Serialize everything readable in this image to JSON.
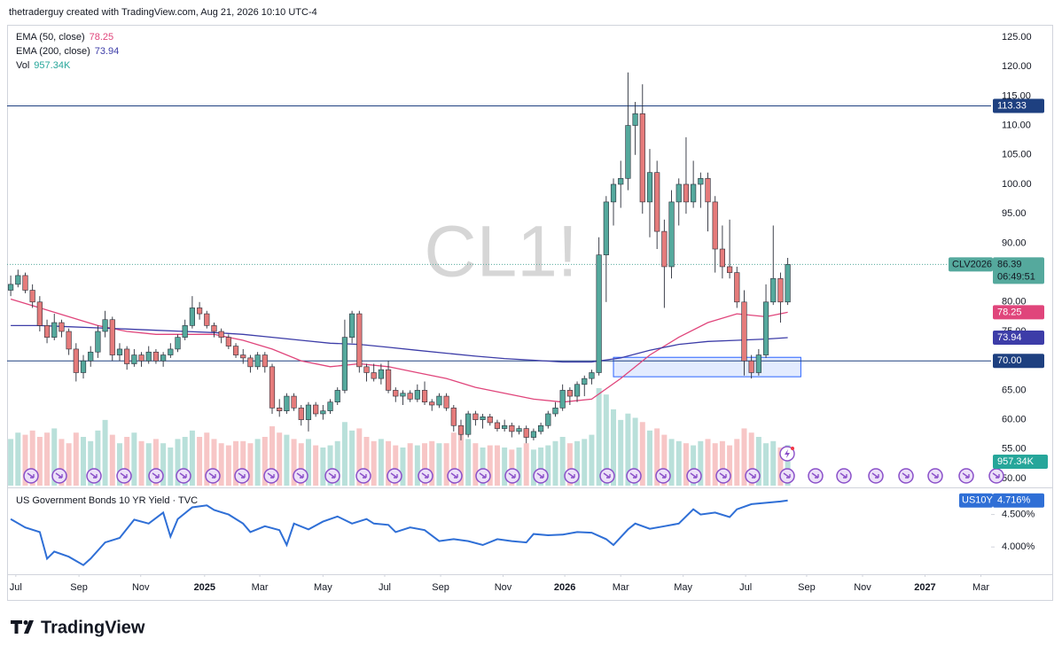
{
  "header": "thetraderguy created with TradingView.com, Aug 21, 2026 10:10 UTC-4",
  "footer": "TradingView",
  "chart_data": [
    {
      "type": "candlestick",
      "watermark": "CL1!",
      "up_color": "#55a99d",
      "down_color": "#e57b7b",
      "candles": [
        [
          82,
          84.5,
          81,
          83
        ],
        [
          83,
          85.5,
          82.5,
          84.5
        ],
        [
          84.5,
          85,
          81.5,
          82
        ],
        [
          82,
          83,
          79,
          80
        ],
        [
          80,
          81,
          75,
          76
        ],
        [
          76,
          77,
          73,
          74
        ],
        [
          74,
          78,
          73.5,
          76.5
        ],
        [
          76.5,
          77,
          74,
          75
        ],
        [
          75,
          75.5,
          71,
          72
        ],
        [
          72,
          73,
          66.5,
          68
        ],
        [
          68,
          71,
          67,
          70
        ],
        [
          70,
          72.5,
          69,
          71.5
        ],
        [
          71.5,
          76,
          70.5,
          75
        ],
        [
          75,
          78.5,
          74,
          77
        ],
        [
          77,
          77.5,
          70,
          71
        ],
        [
          71,
          73,
          70,
          72
        ],
        [
          72,
          72.5,
          68.5,
          69.5
        ],
        [
          69.5,
          72,
          69,
          71
        ],
        [
          71,
          71.5,
          69,
          70
        ],
        [
          70,
          72.5,
          69.5,
          71.5
        ],
        [
          71.5,
          72,
          69.5,
          70
        ],
        [
          70,
          71.5,
          69,
          71
        ],
        [
          71,
          73,
          70.5,
          72
        ],
        [
          72,
          74.5,
          71.5,
          74
        ],
        [
          74,
          77,
          73.5,
          76
        ],
        [
          76,
          81,
          75.5,
          79
        ],
        [
          79,
          80,
          77,
          78
        ],
        [
          78,
          78.5,
          75.5,
          76
        ],
        [
          76,
          76.5,
          74,
          75
        ],
        [
          75,
          75.5,
          73,
          74
        ],
        [
          74,
          74.5,
          72,
          72.5
        ],
        [
          72.5,
          73,
          70.5,
          71
        ],
        [
          71,
          72,
          69.5,
          70.5
        ],
        [
          70.5,
          71,
          68,
          69
        ],
        [
          69,
          71.5,
          68.5,
          71
        ],
        [
          71,
          71.5,
          68,
          69
        ],
        [
          69,
          69.5,
          61,
          62
        ],
        [
          62,
          63.5,
          60.5,
          61.5
        ],
        [
          61.5,
          64.5,
          61,
          64
        ],
        [
          64,
          64.5,
          61.5,
          62
        ],
        [
          62,
          62.5,
          59,
          60
        ],
        [
          60,
          63,
          58,
          62.5
        ],
        [
          62.5,
          63,
          60.5,
          61
        ],
        [
          61,
          62.5,
          60,
          61.5
        ],
        [
          61.5,
          63.5,
          61,
          63
        ],
        [
          63,
          65.5,
          62.5,
          65
        ],
        [
          65,
          77,
          64.5,
          74
        ],
        [
          74,
          78.5,
          73,
          78
        ],
        [
          78,
          78.5,
          68,
          69
        ],
        [
          69,
          69.5,
          66.5,
          68
        ],
        [
          68,
          69.5,
          66.5,
          67
        ],
        [
          67,
          69.5,
          66,
          68.5
        ],
        [
          68.5,
          70,
          64.5,
          65
        ],
        [
          65,
          65.5,
          63,
          64
        ],
        [
          64,
          65,
          62.5,
          64.5
        ],
        [
          64.5,
          65,
          63,
          63.5
        ],
        [
          63.5,
          66,
          63,
          65
        ],
        [
          65,
          66.5,
          62.5,
          63
        ],
        [
          63,
          63.5,
          61.5,
          62.5
        ],
        [
          62.5,
          64.5,
          62,
          64
        ],
        [
          64,
          64.5,
          61.5,
          62
        ],
        [
          62,
          62.5,
          58,
          59
        ],
        [
          59,
          60,
          56.5,
          57.5
        ],
        [
          57.5,
          61.5,
          57,
          61
        ],
        [
          61,
          61.5,
          59,
          60
        ],
        [
          60,
          61,
          58.5,
          60.5
        ],
        [
          60.5,
          61,
          59,
          59.5
        ],
        [
          59.5,
          60,
          58,
          58.5
        ],
        [
          58.5,
          60,
          58,
          59
        ],
        [
          59,
          59.5,
          57,
          58
        ],
        [
          58,
          59,
          57.5,
          58.5
        ],
        [
          58.5,
          59,
          56,
          57
        ],
        [
          57,
          58.5,
          56.5,
          58
        ],
        [
          58,
          59.5,
          57.5,
          59
        ],
        [
          59,
          61.5,
          58.5,
          61
        ],
        [
          61,
          63,
          60.5,
          62
        ],
        [
          62,
          66,
          61.5,
          65
        ],
        [
          65,
          65.5,
          62.5,
          64
        ],
        [
          64,
          66.5,
          63,
          66
        ],
        [
          66,
          67.5,
          64,
          67
        ],
        [
          67,
          68.5,
          66,
          68
        ],
        [
          68,
          91,
          67.5,
          88
        ],
        [
          88,
          98,
          80,
          97
        ],
        [
          97,
          101,
          93,
          100
        ],
        [
          100,
          104,
          96,
          101
        ],
        [
          101,
          119,
          99,
          110
        ],
        [
          110,
          114,
          105,
          112
        ],
        [
          112,
          117,
          95,
          97
        ],
        [
          97,
          106,
          91,
          102
        ],
        [
          102,
          104,
          89,
          92
        ],
        [
          92,
          94,
          79,
          86
        ],
        [
          86,
          99,
          84,
          97
        ],
        [
          97,
          101,
          93,
          100
        ],
        [
          100,
          108,
          95,
          97
        ],
        [
          97,
          104,
          96,
          100
        ],
        [
          100,
          102,
          96,
          101
        ],
        [
          101,
          102,
          92,
          97
        ],
        [
          97,
          98,
          85,
          89
        ],
        [
          89,
          93,
          84,
          86
        ],
        [
          86,
          94,
          84,
          85
        ],
        [
          85,
          86,
          79,
          80
        ],
        [
          80,
          82,
          67.5,
          70
        ],
        [
          70,
          71,
          67,
          68
        ],
        [
          68,
          72,
          67.5,
          71
        ],
        [
          71,
          83,
          70.5,
          80
        ],
        [
          80,
          93,
          79.5,
          84
        ],
        [
          84,
          85,
          76.5,
          80
        ],
        [
          80,
          87.5,
          79.5,
          86.39
        ]
      ],
      "last": {
        "symbol": "CLV2026",
        "countdown": "06:49:51"
      },
      "volume": {
        "name": "Vol",
        "color": "#26a69a",
        "up_color": "#b9e0da",
        "down_color": "#f7c6c6",
        "ylim": [
          0,
          2300
        ],
        "last_label": "957.34K",
        "values": [
          1100,
          1250,
          1200,
          1300,
          1150,
          1250,
          1350,
          1100,
          1000,
          1250,
          1150,
          1050,
          1300,
          1550,
          1200,
          1000,
          1150,
          1250,
          1050,
          1000,
          1100,
          1000,
          900,
          1100,
          1150,
          1300,
          1150,
          1250,
          1100,
          1000,
          950,
          1050,
          1050,
          1000,
          1100,
          1150,
          1400,
          1250,
          1200,
          1100,
          1000,
          1100,
          950,
          900,
          950,
          1050,
          1500,
          1300,
          1350,
          1150,
          1050,
          1100,
          1050,
          950,
          900,
          1000,
          950,
          1000,
          1050,
          1000,
          1000,
          1250,
          1200,
          1100,
          1000,
          900,
          950,
          950,
          900,
          850,
          900,
          1000,
          850,
          900,
          950,
          1050,
          1150,
          1000,
          1050,
          1100,
          1200,
          2300,
          2150,
          1800,
          1550,
          1700,
          1600,
          1500,
          1300,
          1350,
          1200,
          1100,
          1050,
          1000,
          950,
          1050,
          1100,
          1000,
          1050,
          950,
          1100,
          1350,
          1250,
          1150,
          1000,
          1050,
          900,
          957.34
        ]
      },
      "ema": [
        {
          "name": "EMA (50, close)",
          "color": "#e0457b",
          "x": [
            0,
            4,
            8,
            12,
            16,
            20,
            24,
            28,
            32,
            36,
            40,
            44,
            48,
            52,
            56,
            60,
            64,
            68,
            72,
            76,
            80,
            84,
            88,
            92,
            96,
            100,
            104,
            107
          ],
          "values": [
            80.5,
            79,
            77.5,
            76,
            75,
            74.5,
            74.5,
            74.5,
            73.5,
            72,
            70,
            69,
            69.5,
            69,
            68,
            67,
            65.5,
            64.5,
            63.5,
            63,
            63.5,
            67,
            71,
            74,
            76.5,
            78,
            77.5,
            78.25
          ]
        },
        {
          "name": "EMA (200, close)",
          "color": "#3d3da8",
          "x": [
            0,
            4,
            8,
            12,
            16,
            20,
            24,
            28,
            32,
            36,
            40,
            44,
            48,
            52,
            56,
            60,
            64,
            68,
            72,
            76,
            80,
            84,
            88,
            92,
            96,
            100,
            104,
            107
          ],
          "values": [
            76,
            76,
            75.8,
            75.6,
            75.4,
            75.2,
            75,
            74.8,
            74.5,
            74,
            73.5,
            73,
            72.8,
            72.3,
            71.8,
            71.3,
            70.8,
            70.4,
            70.1,
            69.8,
            69.8,
            70.5,
            71.8,
            72.8,
            73.3,
            73.5,
            73.7,
            73.94
          ]
        }
      ],
      "hlines": [
        {
          "value": 113.33,
          "label": "113.33"
        },
        {
          "value": 70,
          "label": "70.00"
        }
      ],
      "hline_color": "#1e4080",
      "zone": {
        "x": [
          83,
          108.8
        ],
        "y": [
          67.3,
          70.6
        ]
      },
      "zone_color": "#2962ff",
      "grid": false,
      "ylim": [
        48.8,
        127.1
      ],
      "yticks": [
        {
          "value": 50,
          "label": "50.00"
        },
        {
          "value": 55,
          "label": "55.00"
        },
        {
          "value": 60,
          "label": "60.00"
        },
        {
          "value": 65,
          "label": "65.00"
        },
        {
          "value": 70,
          "label": "70.00"
        },
        {
          "value": 75,
          "label": "75.00"
        },
        {
          "value": 80,
          "label": "80.00"
        },
        {
          "value": 85,
          "label": "85.00"
        },
        {
          "value": 90,
          "label": "90.00"
        },
        {
          "value": 95,
          "label": "95.00"
        },
        {
          "value": 100,
          "label": "100.00"
        },
        {
          "value": 105,
          "label": "105.00"
        },
        {
          "value": 110,
          "label": "110.00"
        },
        {
          "value": 115,
          "label": "115.00"
        },
        {
          "value": 120,
          "label": "120.00"
        },
        {
          "value": 125,
          "label": "125.00"
        }
      ],
      "xlim": [
        -0.5,
        135
      ],
      "xticks": [
        {
          "value": 0.7,
          "label": "Jul"
        },
        {
          "value": 9.4,
          "label": "Sep"
        },
        {
          "value": 17.9,
          "label": "Nov"
        },
        {
          "value": 26.7,
          "label": "2025"
        },
        {
          "value": 34.3,
          "label": "Mar"
        },
        {
          "value": 43,
          "label": "May"
        },
        {
          "value": 51.5,
          "label": "Jul"
        },
        {
          "value": 59.2,
          "label": "Sep"
        },
        {
          "value": 67.8,
          "label": "Nov"
        },
        {
          "value": 76.3,
          "label": "2026"
        },
        {
          "value": 84,
          "label": "Mar"
        },
        {
          "value": 92.6,
          "label": "May"
        },
        {
          "value": 101.2,
          "label": "Jul"
        },
        {
          "value": 109.6,
          "label": "Sep"
        },
        {
          "value": 117.3,
          "label": "Nov"
        },
        {
          "value": 125.9,
          "label": "2027"
        },
        {
          "value": 133.6,
          "label": "Mar"
        }
      ]
    },
    {
      "type": "line",
      "title": "US Government Bonds 10 YR Yield · TVC",
      "series": [
        {
          "name": "US10Y",
          "color": "#2f6fd6",
          "x": [
            0,
            2,
            4,
            5,
            6,
            8,
            10,
            11,
            13,
            15,
            17,
            19,
            21,
            22,
            23,
            25,
            27,
            28,
            30,
            32,
            33,
            35,
            37,
            38,
            39,
            41,
            43,
            45,
            47,
            49,
            50,
            52,
            53,
            55,
            57,
            59,
            61,
            63,
            65,
            67,
            69,
            71,
            72,
            74,
            76,
            78,
            80,
            82,
            83,
            85,
            86,
            88,
            90,
            92,
            94,
            95,
            97,
            99,
            100,
            102,
            104,
            106,
            107
          ],
          "values": [
            4.43,
            4.3,
            4.23,
            3.82,
            3.93,
            3.85,
            3.72,
            3.82,
            4.07,
            4.14,
            4.42,
            4.36,
            4.53,
            4.16,
            4.43,
            4.61,
            4.64,
            4.57,
            4.5,
            4.36,
            4.23,
            4.32,
            4.26,
            4.03,
            4.36,
            4.27,
            4.39,
            4.47,
            4.36,
            4.43,
            4.36,
            4.34,
            4.23,
            4.3,
            4.26,
            4.09,
            4.12,
            4.09,
            4.03,
            4.12,
            4.09,
            4.07,
            4.2,
            4.18,
            4.19,
            4.23,
            4.22,
            4.12,
            4.03,
            4.27,
            4.36,
            4.28,
            4.32,
            4.36,
            4.58,
            4.5,
            4.53,
            4.46,
            4.58,
            4.66,
            4.68,
            4.7,
            4.716
          ],
          "last_label": "4.716%"
        }
      ],
      "ylim": [
        3.58,
        4.89
      ],
      "yticks": [
        {
          "value": 4.5,
          "label": "4.500%"
        },
        {
          "value": 4,
          "label": "4.000%"
        }
      ]
    }
  ]
}
